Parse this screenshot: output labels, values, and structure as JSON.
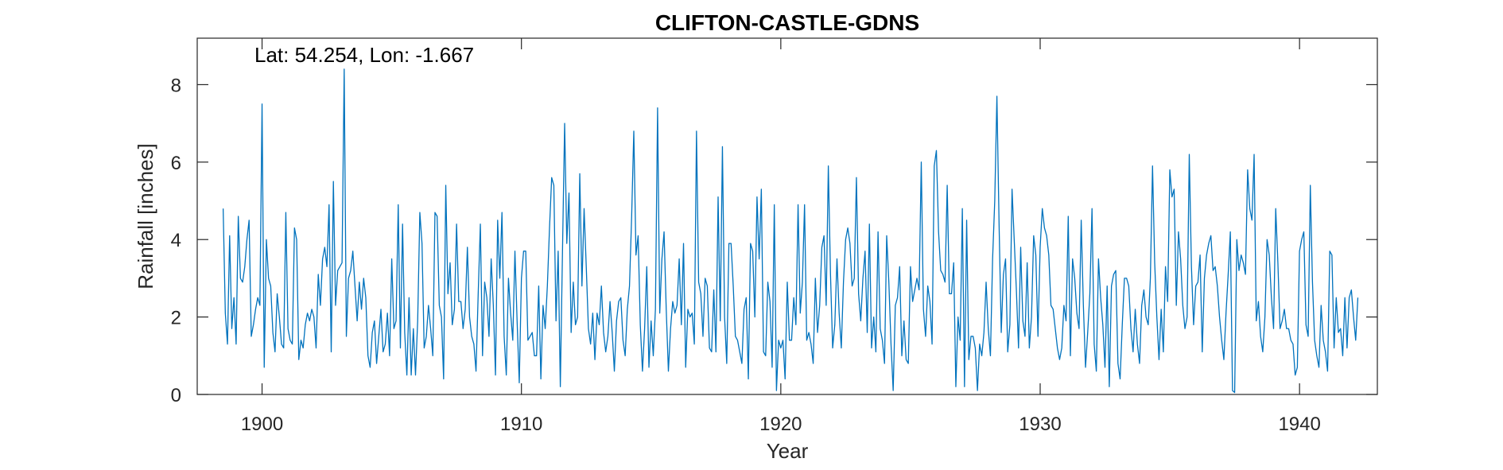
{
  "chart_data": {
    "type": "line",
    "title": "CLIFTON-CASTLE-GDNS",
    "annotation": "Lat: 54.254, Lon: -1.667",
    "xlabel": "Year",
    "ylabel": "Rainfall [inches]",
    "xlim": [
      1897.5,
      1943.0
    ],
    "ylim": [
      0,
      9.2
    ],
    "xticks": [
      1900,
      1910,
      1920,
      1930,
      1940
    ],
    "yticks": [
      0,
      2,
      4,
      6,
      8
    ],
    "grid": false,
    "box": true,
    "line_color": "#0072BD",
    "series": [
      {
        "x_start": 1898.5,
        "x_step": 0.08333,
        "values": [
          4.8,
          2.1,
          1.3,
          4.1,
          1.7,
          2.5,
          1.3,
          4.6,
          3.0,
          2.9,
          3.3,
          4.0,
          4.5,
          1.5,
          1.8,
          2.2,
          2.5,
          2.3,
          7.5,
          0.7,
          4.0,
          3.0,
          2.8,
          1.6,
          1.1,
          2.6,
          2.0,
          1.3,
          1.2,
          4.7,
          1.7,
          1.4,
          1.3,
          4.3,
          4.0,
          0.9,
          1.4,
          1.2,
          1.8,
          2.1,
          1.9,
          2.2,
          2.0,
          1.2,
          3.1,
          2.3,
          3.5,
          3.8,
          3.3,
          4.9,
          1.1,
          5.5,
          2.3,
          3.2,
          3.3,
          3.4,
          8.4,
          1.5,
          3.0,
          3.2,
          3.7,
          2.8,
          1.9,
          2.9,
          2.2,
          3.0,
          2.5,
          1.0,
          0.7,
          1.6,
          1.9,
          0.8,
          1.5,
          2.2,
          1.1,
          1.3,
          2.1,
          1.0,
          3.5,
          1.7,
          1.9,
          4.9,
          1.2,
          4.4,
          1.6,
          0.5,
          2.5,
          0.5,
          1.7,
          0.5,
          1.9,
          4.7,
          3.9,
          1.2,
          1.5,
          2.3,
          1.7,
          1.0,
          4.7,
          4.6,
          2.3,
          2.0,
          0.4,
          5.4,
          2.6,
          3.4,
          1.8,
          2.2,
          4.4,
          2.4,
          2.4,
          1.7,
          2.2,
          3.8,
          2.0,
          1.5,
          1.3,
          0.6,
          2.6,
          4.4,
          1.0,
          2.9,
          2.5,
          1.5,
          3.5,
          2.3,
          0.5,
          4.5,
          3.0,
          4.7,
          1.5,
          0.5,
          3.0,
          2.1,
          1.4,
          3.7,
          1.9,
          0.3,
          3.0,
          3.7,
          3.7,
          1.4,
          1.5,
          1.6,
          1.0,
          1.0,
          2.8,
          0.4,
          2.3,
          1.7,
          2.8,
          4.3,
          5.6,
          5.4,
          1.9,
          3.7,
          0.2,
          3.7,
          7.0,
          3.9,
          5.2,
          1.6,
          2.9,
          1.8,
          2.0,
          5.7,
          2.8,
          4.8,
          3.3,
          1.7,
          1.3,
          2.1,
          0.9,
          2.1,
          1.8,
          2.8,
          1.6,
          1.1,
          1.5,
          2.4,
          1.6,
          0.6,
          1.9,
          2.4,
          2.5,
          1.4,
          1.0,
          2.2,
          2.8,
          4.6,
          6.8,
          3.6,
          4.1,
          1.8,
          0.6,
          1.7,
          3.3,
          0.7,
          1.9,
          1.0,
          2.2,
          7.4,
          2.1,
          3.5,
          4.2,
          2.2,
          0.6,
          1.7,
          2.4,
          2.1,
          2.3,
          3.5,
          1.8,
          3.9,
          0.7,
          2.2,
          2.0,
          2.1,
          1.3,
          6.8,
          2.9,
          2.6,
          1.5,
          3.0,
          2.8,
          1.2,
          1.1,
          2.7,
          1.1,
          5.1,
          1.9,
          6.4,
          2.0,
          0.8,
          3.9,
          3.9,
          2.8,
          1.5,
          1.4,
          1.1,
          0.8,
          2.2,
          2.5,
          0.4,
          3.9,
          3.7,
          2.0,
          5.1,
          3.5,
          5.3,
          1.1,
          1.0,
          2.9,
          2.4,
          0.7,
          4.9,
          0.1,
          1.4,
          1.2,
          1.4,
          0.4,
          2.9,
          1.4,
          1.4,
          2.5,
          1.8,
          4.9,
          2.1,
          2.9,
          4.9,
          1.4,
          1.6,
          1.3,
          0.8,
          3.0,
          1.6,
          2.3,
          3.8,
          4.1,
          2.3,
          5.9,
          3.1,
          1.2,
          1.8,
          3.5,
          2.1,
          1.2,
          2.9,
          4.0,
          4.3,
          3.9,
          2.8,
          3.0,
          5.6,
          2.6,
          1.9,
          3.0,
          3.7,
          1.6,
          4.4,
          1.2,
          2.0,
          1.1,
          4.2,
          1.7,
          1.4,
          0.8,
          4.1,
          2.9,
          1.3,
          0.1,
          2.3,
          2.5,
          3.3,
          1.0,
          1.9,
          0.9,
          0.8,
          3.3,
          2.4,
          2.7,
          3.0,
          2.7,
          6.0,
          2.2,
          1.5,
          2.8,
          2.4,
          1.3,
          5.9,
          6.3,
          4.2,
          3.2,
          3.1,
          2.9,
          5.4,
          2.6,
          2.6,
          3.4,
          0.2,
          2.0,
          1.4,
          4.8,
          0.2,
          4.5,
          0.9,
          1.5,
          1.5,
          1.2,
          0.1,
          1.3,
          1.0,
          1.6,
          2.9,
          1.7,
          1.0,
          3.5,
          5.0,
          7.7,
          4.4,
          1.6,
          3.1,
          3.5,
          1.1,
          1.8,
          5.3,
          4.0,
          2.7,
          1.2,
          3.8,
          1.9,
          1.5,
          3.4,
          1.2,
          2.0,
          4.1,
          3.6,
          1.5,
          3.8,
          4.8,
          4.3,
          4.1,
          3.6,
          2.3,
          2.2,
          1.7,
          1.2,
          0.9,
          1.2,
          2.3,
          1.9,
          4.6,
          1.0,
          3.5,
          3.0,
          2.1,
          1.7,
          4.5,
          2.3,
          0.7,
          1.6,
          2.6,
          4.8,
          1.3,
          0.6,
          3.5,
          2.5,
          1.8,
          0.7,
          2.8,
          0.2,
          2.8,
          3.1,
          3.2,
          0.8,
          0.4,
          1.8,
          3.0,
          3.0,
          2.8,
          1.7,
          1.1,
          2.2,
          1.3,
          0.8,
          2.3,
          2.7,
          2.0,
          1.8,
          3.0,
          5.9,
          3.4,
          2.0,
          0.9,
          2.2,
          1.1,
          3.3,
          2.4,
          5.8,
          5.1,
          5.3,
          2.3,
          4.2,
          3.5,
          2.3,
          1.7,
          2.0,
          6.2,
          3.3,
          1.8,
          2.8,
          2.9,
          3.6,
          1.1,
          3.0,
          3.6,
          3.9,
          4.1,
          3.2,
          3.3,
          2.8,
          2.0,
          1.4,
          0.9,
          2.1,
          3.1,
          4.2,
          0.1,
          0.05,
          4.0,
          3.2,
          3.6,
          3.4,
          3.1,
          5.8,
          4.8,
          4.5,
          6.2,
          1.9,
          2.4,
          1.5,
          1.1,
          2.0,
          4.0,
          3.6,
          2.5,
          1.7,
          4.8,
          3.4,
          1.7,
          1.9,
          2.2,
          1.7,
          1.7,
          1.4,
          1.3,
          0.5,
          0.7,
          3.7,
          4.0,
          4.2,
          1.8,
          1.5,
          5.4,
          2.9,
          1.4,
          1.0,
          0.7,
          2.3,
          1.4,
          1.1,
          0.6,
          3.7,
          3.6,
          1.2,
          2.5,
          1.6,
          1.7,
          1.0,
          2.5,
          1.2,
          2.5,
          2.7,
          2.0,
          1.4,
          2.5
        ]
      }
    ]
  }
}
